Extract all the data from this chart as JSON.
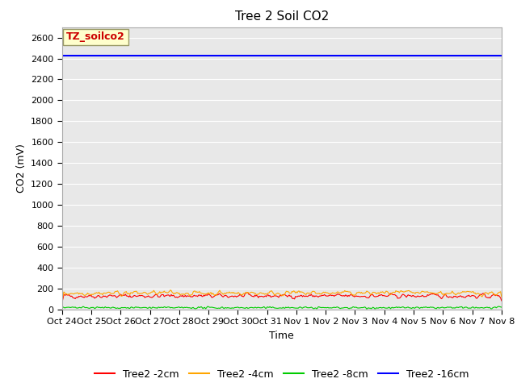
{
  "title": "Tree 2 Soil CO2",
  "ylabel": "CO2 (mV)",
  "xlabel": "Time",
  "ylim": [
    0,
    2700
  ],
  "yticks": [
    0,
    200,
    400,
    600,
    800,
    1000,
    1200,
    1400,
    1600,
    1800,
    2000,
    2200,
    2400,
    2600
  ],
  "xtick_labels": [
    "Oct 24",
    "Oct 25",
    "Oct 26",
    "Oct 27",
    "Oct 28",
    "Oct 29",
    "Oct 30",
    "Oct 31",
    "Nov 1",
    "Nov 2",
    "Nov 3",
    "Nov 4",
    "Nov 5",
    "Nov 6",
    "Nov 7",
    "Nov 8"
  ],
  "n_points": 500,
  "line_2cm_base": 130,
  "line_2cm_noise": 20,
  "line_4cm_base": 158,
  "line_4cm_noise": 22,
  "line_8cm_base": 18,
  "line_8cm_noise": 6,
  "line_16cm_value": 2430,
  "colors": {
    "2cm": "#ff0000",
    "4cm": "#ffa500",
    "8cm": "#00cc00",
    "16cm": "#0000ff"
  },
  "legend_labels": [
    "Tree2 -2cm",
    "Tree2 -4cm",
    "Tree2 -8cm",
    "Tree2 -16cm"
  ],
  "annotation_text": "TZ_soilco2",
  "annotation_bg": "#ffffcc",
  "annotation_fg": "#cc0000",
  "plot_bg": "#e8e8e8",
  "grid_color": "#ffffff",
  "title_fontsize": 11,
  "label_fontsize": 9,
  "tick_fontsize": 8,
  "legend_fontsize": 9
}
